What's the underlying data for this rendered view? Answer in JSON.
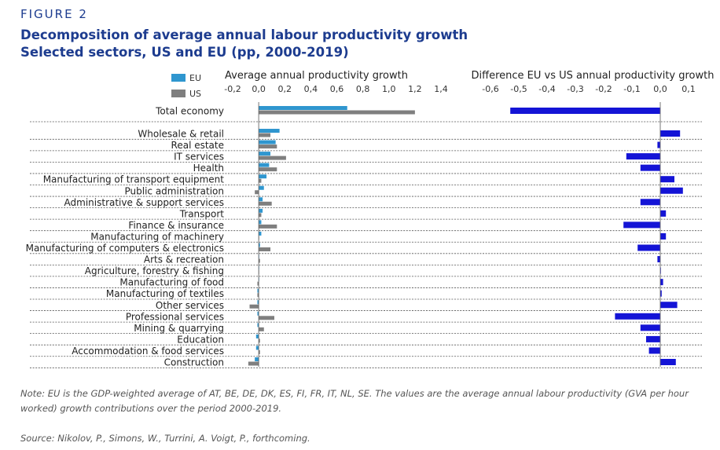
{
  "figure_label": "FIGURE 2",
  "title_line1": "Decomposition of average annual labour productivity growth",
  "title_line2": "Selected sectors, US and EU (pp, 2000-2019)",
  "note": "Note: EU is the GDP-weighted average of AT, BE, DE, DK, ES, FI, FR, IT, NL, SE. The values are the average annual labour productivity (GVA per hour worked) growth contributions over the period 2000-2019.",
  "source": "Source: Nikolov, P., Simons, W., Turrini, A. Voigt, P., forthcoming.",
  "colors": {
    "eu": "#2f96cf",
    "us": "#7f7f7f",
    "diff": "#1414d6"
  },
  "chart_data": [
    {
      "type": "bar",
      "orientation": "horizontal",
      "title": "Average annual productivity growth",
      "legend": [
        "EU",
        "US"
      ],
      "legend_position": "top-left",
      "xlim": [
        -0.2,
        1.4
      ],
      "xticks": [
        -0.2,
        0.0,
        0.2,
        0.4,
        0.6,
        0.8,
        1.0,
        1.2,
        1.4
      ],
      "xtick_labels": [
        "-0,2",
        "0,0",
        "0,2",
        "0,4",
        "0,6",
        "0,8",
        "1,0",
        "1,2",
        "1,4"
      ],
      "categories": [
        "Total economy",
        "Wholesale & retail",
        "Real estate",
        "IT services",
        "Health",
        "Manufacturing of transport equipment",
        "Public administration",
        "Administrative & support services",
        "Transport",
        "Finance & insurance",
        "Manufacturing of machinery",
        "Manufacturing of computers & electronics",
        "Arts & recreation",
        "Agriculture, forestry & fishing",
        "Manufacturing of food",
        "Manufacturing of textiles",
        "Other services",
        "Professional services",
        "Mining & quarrying",
        "Education",
        "Accommodation & food services",
        "Construction"
      ],
      "series": [
        {
          "name": "EU",
          "values": [
            0.68,
            0.16,
            0.13,
            0.09,
            0.08,
            0.06,
            0.04,
            0.03,
            0.03,
            0.02,
            0.02,
            0.01,
            0.0,
            0.0,
            0.0,
            -0.01,
            -0.01,
            -0.01,
            -0.01,
            -0.02,
            -0.02,
            -0.03
          ]
        },
        {
          "name": "US",
          "values": [
            1.2,
            0.09,
            0.14,
            0.21,
            0.14,
            0.02,
            -0.03,
            0.1,
            0.02,
            0.14,
            0.0,
            0.09,
            0.01,
            0.0,
            -0.01,
            -0.01,
            -0.07,
            0.12,
            0.04,
            0.01,
            0.01,
            -0.08
          ]
        }
      ]
    },
    {
      "type": "bar",
      "orientation": "horizontal",
      "title": "Difference EU vs US annual productivity growth",
      "xlim": [
        -0.6,
        0.1
      ],
      "xticks": [
        -0.6,
        -0.5,
        -0.4,
        -0.3,
        -0.2,
        -0.1,
        0.0,
        0.1
      ],
      "xtick_labels": [
        "-0,6",
        "-0,5",
        "-0,4",
        "-0,3",
        "-0,2",
        "-0,1",
        "0,0",
        "0,1"
      ],
      "values": [
        -0.53,
        0.07,
        -0.01,
        -0.12,
        -0.07,
        0.05,
        0.08,
        -0.07,
        0.02,
        -0.13,
        0.02,
        -0.08,
        -0.01,
        0.0,
        0.01,
        0.005,
        0.06,
        -0.16,
        -0.07,
        -0.05,
        -0.04,
        0.055
      ]
    }
  ]
}
